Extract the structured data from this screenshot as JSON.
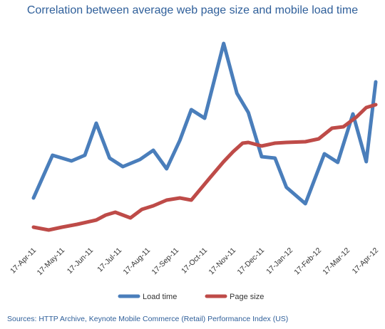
{
  "chart_data": {
    "type": "line",
    "title": "Correlation between average web page size and mobile load time",
    "x": [
      "17-Apr-11",
      "",
      "17-May-11",
      "",
      "17-Jun-11",
      "",
      "17-Jul-11",
      "",
      "17-Aug-11",
      "",
      "17-Sep-11",
      "",
      "17-Oct-11",
      "",
      "17-Nov-11",
      "",
      "17-Dec-11",
      "",
      "17-Jan-12",
      "",
      "17-Feb-12",
      "",
      "17-Mar-12",
      "",
      "17-Apr-12"
    ],
    "tick_labels": [
      "17-Apr-11",
      "17-May-11",
      "17-Jun-11",
      "17-Jul-11",
      "17-Aug-11",
      "17-Sep-11",
      "17-Oct-11",
      "17-Nov-11",
      "17-Dec-11",
      "17-Jan-12",
      "17-Feb-12",
      "17-Mar-12",
      "17-Apr-12"
    ],
    "ylim": [
      0,
      300
    ],
    "grid": false,
    "legend": "bottom-center",
    "series": [
      {
        "name": "Load time",
        "color": "#4a7ebb",
        "values": [
          [
            0,
            62
          ],
          [
            1,
            122
          ],
          [
            2,
            114
          ],
          [
            2.7,
            122
          ],
          [
            3.3,
            167
          ],
          [
            4,
            118
          ],
          [
            4.7,
            106
          ],
          [
            5.6,
            116
          ],
          [
            6.3,
            129
          ],
          [
            7,
            103
          ],
          [
            7.7,
            143
          ],
          [
            8.3,
            186
          ],
          [
            9,
            174
          ],
          [
            10,
            279
          ],
          [
            10.7,
            209
          ],
          [
            11.3,
            182
          ],
          [
            12,
            120
          ],
          [
            12.7,
            118
          ],
          [
            13.3,
            77
          ],
          [
            14.3,
            54
          ],
          [
            15.3,
            124
          ],
          [
            16,
            112
          ],
          [
            16.8,
            180
          ],
          [
            17.5,
            113
          ],
          [
            18,
            225
          ]
        ]
      },
      {
        "name": "Page size",
        "color": "#be4b48",
        "values": [
          [
            0,
            21
          ],
          [
            0.8,
            17
          ],
          [
            1.5,
            21
          ],
          [
            2.3,
            25
          ],
          [
            3.3,
            31
          ],
          [
            3.8,
            38
          ],
          [
            4.3,
            42
          ],
          [
            5.1,
            34
          ],
          [
            5.7,
            46
          ],
          [
            6.3,
            51
          ],
          [
            7,
            59
          ],
          [
            7.7,
            62
          ],
          [
            8.3,
            59
          ],
          [
            9.3,
            91
          ],
          [
            10,
            113
          ],
          [
            10.5,
            127
          ],
          [
            11,
            139
          ],
          [
            11.3,
            140
          ],
          [
            12,
            135
          ],
          [
            12.7,
            139
          ],
          [
            13.3,
            140
          ],
          [
            14.3,
            141
          ],
          [
            15,
            145
          ],
          [
            15.7,
            160
          ],
          [
            16.3,
            162
          ],
          [
            17,
            176
          ],
          [
            17.5,
            189
          ],
          [
            18,
            193
          ]
        ]
      }
    ]
  },
  "source": "Sources: HTTP Archive, Keynote Mobile Commerce (Retail) Performance Index (US)",
  "legend": {
    "load_time": "Load time",
    "page_size": "Page size"
  }
}
